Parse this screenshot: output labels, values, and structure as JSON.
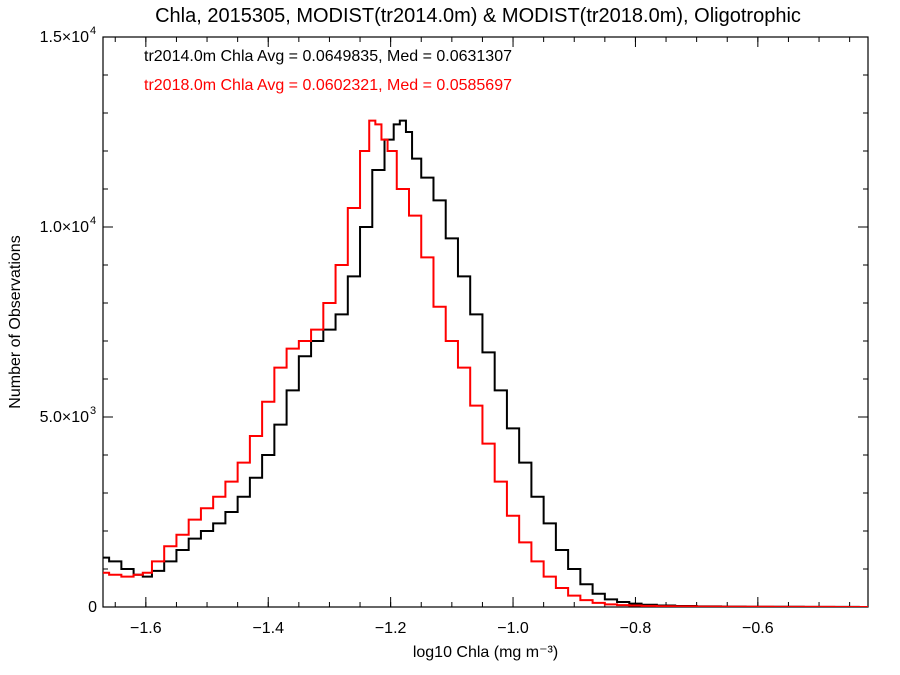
{
  "chart_data": {
    "type": "line",
    "title": "Chla, 2015305, MODIST(tr2014.0m) & MODIST(tr2018.0m), Oligotrophic",
    "xlabel": "log10 Chla (mg m⁻³)",
    "ylabel": "Number of Observations",
    "xlim": [
      -1.67,
      -0.42
    ],
    "ylim": [
      0,
      15000
    ],
    "grid": false,
    "x_ticks": [
      {
        "value": -1.6,
        "label": "−1.6"
      },
      {
        "value": -1.4,
        "label": "−1.4"
      },
      {
        "value": -1.2,
        "label": "−1.2"
      },
      {
        "value": -1.0,
        "label": "−1.0"
      },
      {
        "value": -0.8,
        "label": "−0.8"
      },
      {
        "value": -0.6,
        "label": "−0.6"
      }
    ],
    "y_ticks": [
      {
        "value": 0,
        "label": "0",
        "exp": ""
      },
      {
        "value": 5000,
        "label": "5.0×10",
        "exp": "3"
      },
      {
        "value": 10000,
        "label": "1.0×10",
        "exp": "4"
      },
      {
        "value": 15000,
        "label": "1.5×10",
        "exp": "4"
      }
    ],
    "annotations": [
      {
        "text": "tr2014.0m Chla Avg = 0.0649835, Med = 0.0631307",
        "color": "#000000"
      },
      {
        "text": "tr2018.0m Chla Avg = 0.0602321, Med = 0.0585697",
        "color": "#ff0000"
      }
    ],
    "series": [
      {
        "color": "#000000",
        "x": [
          -1.67,
          -1.65,
          -1.63,
          -1.61,
          -1.6,
          -1.58,
          -1.56,
          -1.54,
          -1.52,
          -1.5,
          -1.48,
          -1.46,
          -1.44,
          -1.42,
          -1.4,
          -1.38,
          -1.36,
          -1.34,
          -1.32,
          -1.3,
          -1.28,
          -1.26,
          -1.24,
          -1.22,
          -1.2,
          -1.19,
          -1.18,
          -1.17,
          -1.16,
          -1.14,
          -1.12,
          -1.1,
          -1.08,
          -1.06,
          -1.04,
          -1.02,
          -1.0,
          -0.98,
          -0.96,
          -0.94,
          -0.92,
          -0.9,
          -0.88,
          -0.86,
          -0.84,
          -0.82,
          -0.8,
          -0.78,
          -0.75,
          -0.72,
          -0.68,
          -0.64,
          -0.6,
          -0.55,
          -0.5,
          -0.45,
          -0.42
        ],
        "y": [
          1300,
          1200,
          1000,
          850,
          800,
          950,
          1200,
          1500,
          1800,
          2000,
          2200,
          2500,
          2900,
          3400,
          4000,
          4800,
          5700,
          6600,
          7000,
          7300,
          7700,
          8700,
          10000,
          11500,
          12300,
          12700,
          12800,
          12500,
          11800,
          11300,
          10700,
          9700,
          8700,
          7700,
          6700,
          5700,
          4700,
          3800,
          2900,
          2200,
          1500,
          1000,
          600,
          350,
          200,
          130,
          90,
          60,
          40,
          25,
          15,
          10,
          7,
          5,
          3,
          2,
          1
        ]
      },
      {
        "color": "#ff0000",
        "x": [
          -1.67,
          -1.65,
          -1.63,
          -1.61,
          -1.6,
          -1.58,
          -1.56,
          -1.54,
          -1.52,
          -1.5,
          -1.48,
          -1.46,
          -1.44,
          -1.42,
          -1.4,
          -1.38,
          -1.36,
          -1.34,
          -1.32,
          -1.3,
          -1.28,
          -1.26,
          -1.24,
          -1.23,
          -1.22,
          -1.21,
          -1.2,
          -1.18,
          -1.16,
          -1.14,
          -1.12,
          -1.1,
          -1.08,
          -1.06,
          -1.04,
          -1.02,
          -1.0,
          -0.98,
          -0.96,
          -0.94,
          -0.92,
          -0.9,
          -0.88,
          -0.86,
          -0.84,
          -0.82,
          -0.8,
          -0.78,
          -0.75,
          -0.72,
          -0.68,
          -0.64,
          -0.6,
          -0.55,
          -0.5,
          -0.45,
          -0.42
        ],
        "y": [
          900,
          850,
          800,
          850,
          900,
          1200,
          1600,
          1900,
          2300,
          2600,
          2900,
          3300,
          3800,
          4500,
          5400,
          6300,
          6800,
          7000,
          7300,
          8000,
          9000,
          10500,
          12000,
          12800,
          12700,
          12300,
          12000,
          11000,
          10300,
          9200,
          7900,
          7000,
          6300,
          5300,
          4300,
          3300,
          2400,
          1700,
          1200,
          800,
          500,
          300,
          180,
          110,
          70,
          50,
          40,
          30,
          20,
          15,
          10,
          7,
          5,
          3,
          2,
          1,
          1
        ]
      }
    ]
  }
}
